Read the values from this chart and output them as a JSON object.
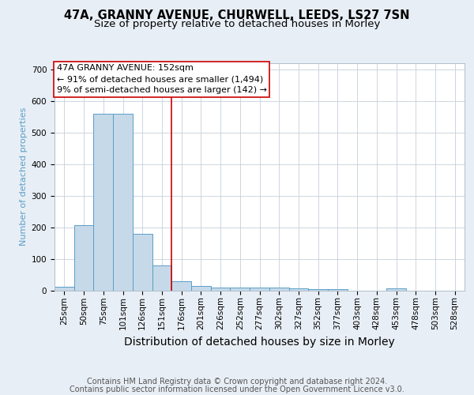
{
  "title1": "47A, GRANNY AVENUE, CHURWELL, LEEDS, LS27 7SN",
  "title2": "Size of property relative to detached houses in Morley",
  "xlabel": "Distribution of detached houses by size in Morley",
  "ylabel": "Number of detached properties",
  "categories": [
    "25sqm",
    "50sqm",
    "75sqm",
    "101sqm",
    "126sqm",
    "151sqm",
    "176sqm",
    "201sqm",
    "226sqm",
    "252sqm",
    "277sqm",
    "302sqm",
    "327sqm",
    "352sqm",
    "377sqm",
    "403sqm",
    "428sqm",
    "453sqm",
    "478sqm",
    "503sqm",
    "528sqm"
  ],
  "values": [
    12,
    207,
    560,
    560,
    178,
    78,
    30,
    13,
    8,
    8,
    10,
    10,
    6,
    5,
    5,
    0,
    0,
    6,
    0,
    0,
    0
  ],
  "bar_color": "#c6d9e8",
  "bar_edge_color": "#5a9ec8",
  "property_line_x": 5.5,
  "annotation_lines": [
    "47A GRANNY AVENUE: 152sqm",
    "← 91% of detached houses are smaller (1,494)",
    "9% of semi-detached houses are larger (142) →"
  ],
  "annotation_box_color": "white",
  "annotation_box_edge_color": "#cc0000",
  "red_line_color": "#cc0000",
  "yticks": [
    0,
    100,
    200,
    300,
    400,
    500,
    600,
    700
  ],
  "ylim": [
    0,
    720
  ],
  "footnote1": "Contains HM Land Registry data © Crown copyright and database right 2024.",
  "footnote2": "Contains public sector information licensed under the Open Government Licence v3.0.",
  "background_color": "#e8eef5",
  "plot_background": "white",
  "title1_fontsize": 10.5,
  "title2_fontsize": 9.5,
  "xlabel_fontsize": 10,
  "ylabel_fontsize": 8,
  "tick_fontsize": 7.5,
  "annotation_fontsize": 8,
  "footnote_fontsize": 7
}
